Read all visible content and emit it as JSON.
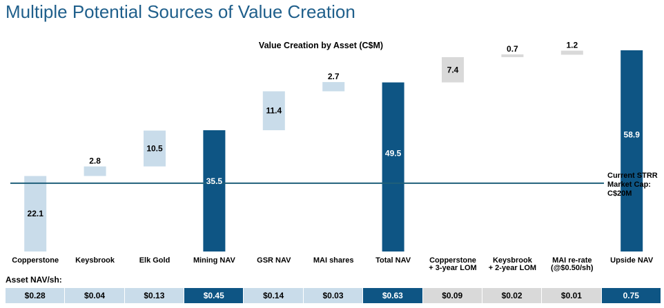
{
  "page_title": "Multiple Potential Sources of Value Creation",
  "colors": {
    "light": "#c9dcea",
    "dark": "#0e5584",
    "grey": "#d9d9d9",
    "line": "#1f5f7a",
    "title": "#1f5f8b"
  },
  "chart_data": {
    "type": "bar",
    "subtype": "waterfall",
    "title": "Value Creation by Asset (C$M)",
    "categories": [
      "Copperstone",
      "Keysbrook",
      "Elk Gold",
      "Mining NAV",
      "GSR NAV",
      "MAI shares",
      "Total NAV",
      "Copperstone\n+ 3-year LOM",
      "Keysbrook\n+ 2-year LOM",
      "MAI re-rate\n(@$0.50/sh)",
      "Upside NAV"
    ],
    "values": [
      22.1,
      2.8,
      10.5,
      35.5,
      11.4,
      2.7,
      49.5,
      7.4,
      0.7,
      1.2,
      58.9
    ],
    "value_labels": [
      "22.1",
      "2.8",
      "10.5",
      "35.5",
      "11.4",
      "2.7",
      "49.5",
      "7.4",
      "0.7",
      "1.2",
      "58.9"
    ],
    "bar_kinds": [
      "light",
      "light",
      "light",
      "dark",
      "light",
      "light",
      "dark",
      "grey",
      "grey",
      "grey",
      "dark"
    ],
    "is_total": [
      false,
      false,
      false,
      true,
      false,
      false,
      true,
      false,
      false,
      false,
      true
    ],
    "reference_line": {
      "value": 20,
      "label": "Current STRR\nMarket Cap:\nC$20M"
    },
    "ylim": [
      0,
      60
    ],
    "xlabel": "",
    "ylabel": "",
    "grid": false
  },
  "nav_table": {
    "label": "Asset NAV/sh:",
    "values": [
      "$0.28",
      "$0.04",
      "$0.13",
      "$0.45",
      "$0.14",
      "$0.03",
      "$0.63",
      "$0.09",
      "$0.02",
      "$0.01",
      "0.75"
    ],
    "kinds": [
      "light",
      "light",
      "light",
      "dark",
      "light",
      "light",
      "dark",
      "grey",
      "grey",
      "grey",
      "dark"
    ]
  }
}
